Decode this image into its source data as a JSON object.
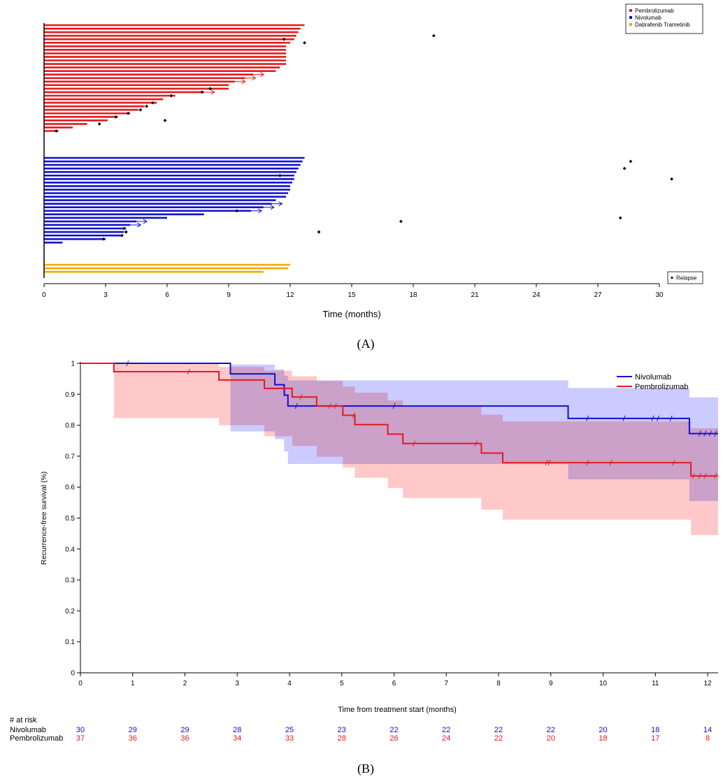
{
  "panel_labels": {
    "a": "(A)",
    "b": "(B)"
  },
  "colors": {
    "pembrolizumab": "#e41a1c",
    "nivolumab": "#1010d0",
    "dabrafenib": "#f5a800",
    "pembro_band": "#ffc6c6",
    "nivo_band": "#c8c8ff",
    "overlap_band": "#dca0d0"
  },
  "chart_data": [
    {
      "type": "swimmer",
      "xlabel": "Time (months)",
      "xlim": [
        0,
        30
      ],
      "xticks": [
        0,
        3,
        6,
        9,
        12,
        15,
        18,
        21,
        24,
        27,
        30
      ],
      "legend": {
        "placement": "top-right",
        "entries": [
          "Pembrolizumab",
          "Nivolumab",
          "Dabrafenib Trametinib"
        ]
      },
      "relapse_legend": {
        "placement": "bottom-right",
        "label": "Relapse"
      },
      "series": [
        {
          "name": "Pembrolizumab",
          "color_key": "pembrolizumab",
          "durations": [
            12.7,
            12.5,
            12.4,
            12.3,
            12.2,
            12.0,
            11.8,
            11.8,
            11.8,
            11.8,
            11.8,
            11.8,
            11.5,
            11.3,
            10.2,
            9.8,
            9.3,
            9.0,
            9.0,
            7.8,
            6.4,
            5.8,
            5.5,
            4.9,
            4.6,
            4.2,
            3.6,
            3.1,
            2.1,
            1.4,
            0.7
          ],
          "ongoing_rows": [
            14,
            15,
            16,
            19
          ],
          "relapses": [
            [
              19.0,
              3
            ],
            [
              11.7,
              4
            ],
            [
              12.7,
              5
            ],
            [
              8.1,
              18
            ],
            [
              7.7,
              19
            ],
            [
              6.2,
              20
            ],
            [
              5.3,
              22
            ],
            [
              5.0,
              23
            ],
            [
              4.7,
              24
            ],
            [
              4.1,
              25
            ],
            [
              3.5,
              26
            ],
            [
              5.9,
              27
            ],
            [
              2.7,
              28
            ],
            [
              0.6,
              30
            ]
          ]
        },
        {
          "name": "Nivolumab",
          "color_key": "nivolumab",
          "durations": [
            12.7,
            12.6,
            12.5,
            12.4,
            12.3,
            12.2,
            12.2,
            12.1,
            12.0,
            12.0,
            11.9,
            11.8,
            11.3,
            11.1,
            10.7,
            10.1,
            7.8,
            6.0,
            4.5,
            4.2,
            4.0,
            3.9,
            3.8,
            3.0,
            0.9
          ],
          "ongoing_rows": [
            13,
            14,
            15,
            18,
            19
          ],
          "relapses": [
            [
              28.6,
              1
            ],
            [
              28.3,
              3
            ],
            [
              11.5,
              5
            ],
            [
              30.6,
              6
            ],
            [
              9.4,
              15
            ],
            [
              28.1,
              17
            ],
            [
              17.4,
              18
            ],
            [
              3.9,
              20
            ],
            [
              13.4,
              21
            ],
            [
              4.0,
              21
            ],
            [
              3.8,
              22
            ],
            [
              2.9,
              23
            ]
          ]
        },
        {
          "name": "Dabrafenib Trametinib",
          "color_key": "dabrafenib",
          "durations": [
            12.0,
            11.9,
            10.7
          ],
          "ongoing_rows": [],
          "relapses": []
        }
      ]
    },
    {
      "type": "line",
      "subtype": "kaplan-meier",
      "xlabel": "Time from treatment start (months)",
      "ylabel": "Recurrence-free survival (%)",
      "xlim": [
        0,
        12.2
      ],
      "ylim": [
        0,
        1
      ],
      "xticks": [
        0,
        1,
        2,
        3,
        4,
        5,
        6,
        7,
        8,
        9,
        10,
        11,
        12
      ],
      "yticks": [
        "0",
        "0.1",
        "0.2",
        "0.3",
        "0.4",
        "0.5",
        "0.6",
        "0.7",
        "0.8",
        "0.9",
        "1"
      ],
      "legend": {
        "placement": "top-right",
        "entries": [
          "Nivolumab",
          "Pembrolizumab"
        ]
      },
      "series": [
        {
          "name": "Nivolumab",
          "color_key": "nivolumab",
          "steps": [
            [
              0,
              1.0
            ],
            [
              2.87,
              0.966
            ],
            [
              3.72,
              0.931
            ],
            [
              3.9,
              0.897
            ],
            [
              3.97,
              0.862
            ],
            [
              9.33,
              0.822
            ],
            [
              11.65,
              0.773
            ],
            [
              12.2,
              0.773
            ]
          ],
          "ci_upper": [
            [
              0,
              1.0
            ],
            [
              2.87,
              0.996
            ],
            [
              3.72,
              0.98
            ],
            [
              3.9,
              0.96
            ],
            [
              3.97,
              0.945
            ],
            [
              9.33,
              0.92
            ],
            [
              11.65,
              0.89
            ],
            [
              12.2,
              0.89
            ]
          ],
          "ci_lower": [
            [
              0,
              1.0
            ],
            [
              2.87,
              0.78
            ],
            [
              3.72,
              0.755
            ],
            [
              3.9,
              0.715
            ],
            [
              3.97,
              0.675
            ],
            [
              9.33,
              0.625
            ],
            [
              11.65,
              0.555
            ],
            [
              12.2,
              0.555
            ]
          ],
          "censor": [
            0.9,
            4.13,
            6.0,
            9.7,
            10.4,
            10.95,
            11.05,
            11.3,
            11.85,
            11.95,
            12.05,
            12.15
          ]
        },
        {
          "name": "Pembrolizumab",
          "color_key": "pembrolizumab",
          "steps": [
            [
              0,
              1.0
            ],
            [
              0.64,
              0.973
            ],
            [
              2.65,
              0.946
            ],
            [
              3.52,
              0.919
            ],
            [
              4.05,
              0.891
            ],
            [
              4.52,
              0.862
            ],
            [
              5.02,
              0.832
            ],
            [
              5.25,
              0.802
            ],
            [
              5.88,
              0.771
            ],
            [
              6.17,
              0.741
            ],
            [
              7.67,
              0.71
            ],
            [
              8.08,
              0.679
            ],
            [
              11.68,
              0.636
            ],
            [
              12.2,
              0.636
            ]
          ],
          "ci_upper": [
            [
              0,
              1.0
            ],
            [
              0.64,
              1.0
            ],
            [
              2.65,
              0.988
            ],
            [
              3.52,
              0.976
            ],
            [
              4.05,
              0.958
            ],
            [
              4.52,
              0.943
            ],
            [
              5.02,
              0.925
            ],
            [
              5.25,
              0.905
            ],
            [
              5.88,
              0.88
            ],
            [
              6.17,
              0.86
            ],
            [
              7.67,
              0.834
            ],
            [
              8.08,
              0.812
            ],
            [
              11.68,
              0.79
            ],
            [
              12.2,
              0.79
            ]
          ],
          "ci_lower": [
            [
              0,
              1.0
            ],
            [
              0.64,
              0.823
            ],
            [
              2.65,
              0.8
            ],
            [
              3.52,
              0.764
            ],
            [
              4.05,
              0.733
            ],
            [
              4.52,
              0.698
            ],
            [
              5.02,
              0.663
            ],
            [
              5.25,
              0.63
            ],
            [
              5.88,
              0.597
            ],
            [
              6.17,
              0.565
            ],
            [
              7.67,
              0.527
            ],
            [
              8.08,
              0.495
            ],
            [
              11.68,
              0.445
            ],
            [
              12.2,
              0.445
            ]
          ],
          "censor": [
            2.07,
            4.22,
            4.77,
            4.88,
            5.23,
            6.38,
            7.57,
            8.92,
            8.97,
            9.7,
            10.15,
            11.35,
            11.73,
            11.85,
            11.95,
            12.15
          ]
        }
      ],
      "at_risk": {
        "header": "# at risk",
        "rows": [
          {
            "name": "Nivolumab",
            "color_key": "nivolumab",
            "values": [
              30,
              29,
              29,
              28,
              25,
              23,
              22,
              22,
              22,
              22,
              20,
              18,
              14
            ]
          },
          {
            "name": "Pembrolizumab",
            "color_key": "pembrolizumab",
            "values": [
              37,
              36,
              36,
              34,
              33,
              28,
              26,
              24,
              22,
              20,
              18,
              17,
              8
            ]
          }
        ]
      }
    }
  ]
}
